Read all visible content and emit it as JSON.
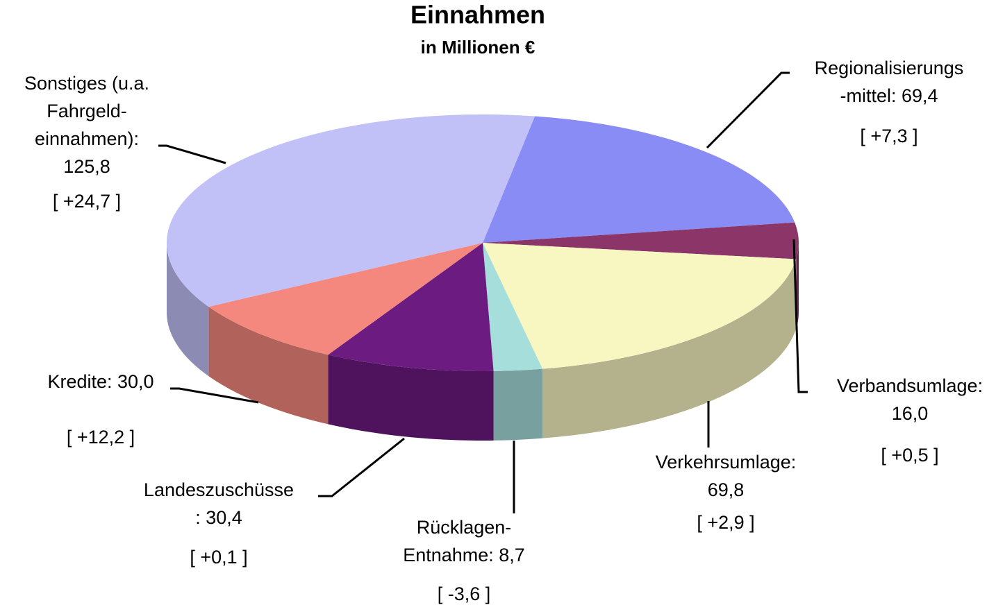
{
  "chart_data": {
    "type": "pie3d",
    "title": "Einnahmen",
    "subtitle": "in Millionen €",
    "labels": [
      [
        "Regionalisierungs",
        "-mittel: 69,4"
      ],
      [
        "Verbandsumlage:",
        "16,0"
      ],
      [
        "Verkehrsumlage:",
        "69,8"
      ],
      [
        "Rücklagen-",
        "Entnahme: 8,7"
      ],
      [
        "Landeszuschüsse",
        ": 30,4"
      ],
      [
        "Kredite: 30,0"
      ],
      [
        "Sonstiges (u.a.",
        "Fahrgeld-",
        "einnahmen):",
        "125,8"
      ]
    ],
    "values": [
      69.4,
      16.0,
      69.8,
      8.7,
      30.4,
      30.0,
      125.8
    ],
    "changes": [
      "[ +7,3 ]",
      "[ +0,5 ]",
      "[ +2,9 ]",
      "[ -3,6 ]",
      "[ +0,1 ]",
      "[ +12,2 ]",
      "[ +24,7 ]"
    ],
    "colors": [
      "#8a8cf6",
      "#8c3568",
      "#f8f7c2",
      "#a6dedb",
      "#6c1b80",
      "#f4887f",
      "#c1c1f8"
    ]
  }
}
